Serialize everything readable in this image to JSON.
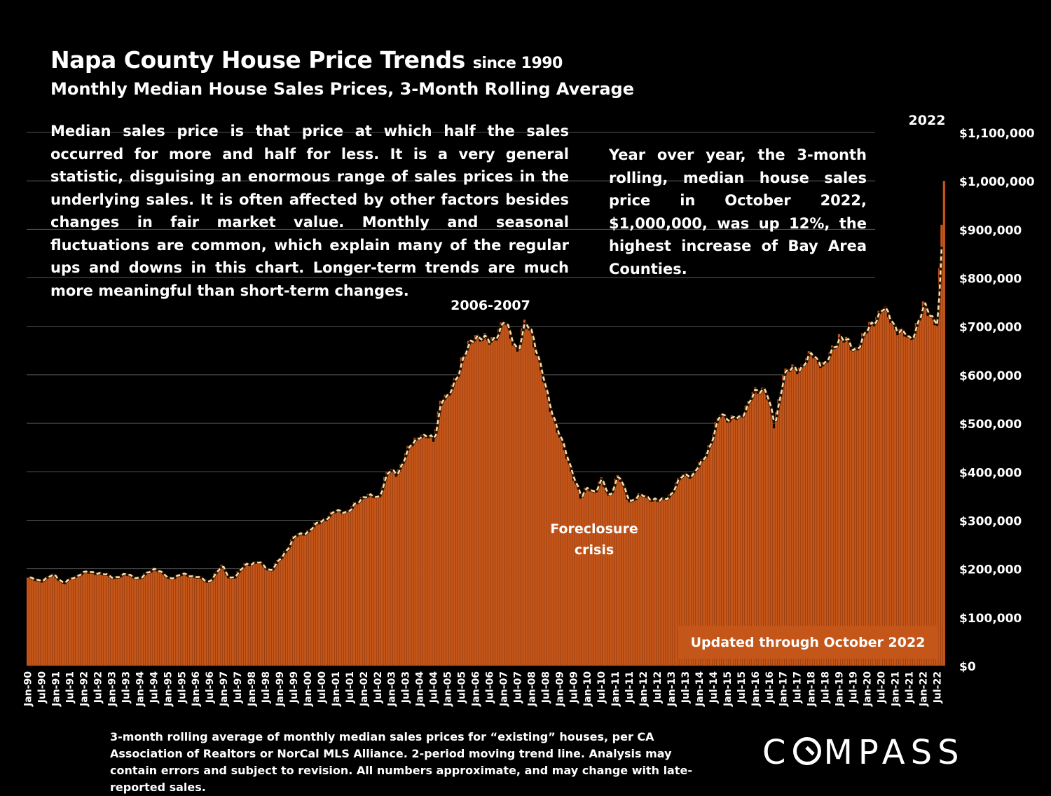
{
  "header": {
    "title": "Napa County House Price Trends",
    "title_suffix": "since 1990",
    "subtitle": "Monthly Median House Sales Prices, 3-Month Rolling Average"
  },
  "description": "Median sales price is that price at which half the sales occurred for more and half for less. It is a very general statistic, disguising an enormous range of sales prices in the underlying sales. It is often affected by other factors besides changes in fair market value. Monthly and seasonal fluctuations are common, which explain many of the regular ups and downs in this chart. Longer-term trends are much more meaningful than short-term changes.",
  "callout": "Year over year, the 3-month rolling, median house sales price in October 2022, $1,000,000, was up 12%, the highest increase of Bay Area Counties.",
  "footnote": "3-month rolling average of monthly median sales prices for “existing” houses, per CA Association of Realtors or NorCal MLS Alliance. 2-period moving trend line. Analysis may contain errors and subject to revision. All numbers approximate, and may change with late-reported sales.",
  "logo": {
    "pre": "C",
    "post": "MPASS"
  },
  "colors": {
    "bar": "#c4561a",
    "bar_edge": "#7a2c08",
    "trend": "#f5dfb0",
    "grid": "#555555",
    "updated_bg": "#c4561a"
  },
  "chart_data": {
    "type": "bar",
    "title": "Napa County House Price Trends since 1990",
    "start": "Jan-90",
    "end": "Oct-22",
    "ylim": [
      0,
      1100000
    ],
    "y_ticks": [
      "$0",
      "$100,000",
      "$200,000",
      "$300,000",
      "$400,000",
      "$500,000",
      "$600,000",
      "$700,000",
      "$800,000",
      "$900,000",
      "$1,000,000",
      "$1,100,000"
    ],
    "x_tick_labels": [
      "Jan-90",
      "Jul-90",
      "Jan-91",
      "Jul-91",
      "Jan-92",
      "Jul-92",
      "Jan-93",
      "Jul-93",
      "Jan-94",
      "Jul-94",
      "Jan-95",
      "Jul-95",
      "Jan-96",
      "Jul-96",
      "Jan-97",
      "Jul-97",
      "Jan-98",
      "Jul-98",
      "Jan-99",
      "Jul-99",
      "Jan-00",
      "Jul-00",
      "Jan-01",
      "Jul-01",
      "Jan-02",
      "Jul-02",
      "Jan-03",
      "Jul-03",
      "Jan-04",
      "Jul-04",
      "Jan-05",
      "Jul-05",
      "Jan-06",
      "Jul-06",
      "Jan-07",
      "Jul-07",
      "Jan-08",
      "Jul-08",
      "Jan-09",
      "Jul-09",
      "Jan-10",
      "Jul-10",
      "Jan-11",
      "Jul-11",
      "Jan-12",
      "Jul-12",
      "Jan-13",
      "Jul-13",
      "Jan-14",
      "Jul-14",
      "Jan-15",
      "Jul-15",
      "Jan-16",
      "Jul-16",
      "Jan-17",
      "Jul-17",
      "Jan-18",
      "Jul-18",
      "Jan-19",
      "Jul-19",
      "Jan-20",
      "Jul-20",
      "Jan-21",
      "Jul-21",
      "Jan-22",
      "Jul-22"
    ],
    "series_name": "3-month rolling median house sales price",
    "trendline": "2-period moving average",
    "anchors": [
      [
        "Jan-90",
        180000
      ],
      [
        "Jul-90",
        176000
      ],
      [
        "Dec-90",
        188000
      ],
      [
        "Apr-91",
        170000
      ],
      [
        "Dec-91",
        192000
      ],
      [
        "Jul-92",
        192000
      ],
      [
        "Jan-93",
        182000
      ],
      [
        "Jul-93",
        188000
      ],
      [
        "Jan-94",
        180000
      ],
      [
        "Jul-94",
        202000
      ],
      [
        "Jan-95",
        180000
      ],
      [
        "Jul-95",
        188000
      ],
      [
        "Jan-96",
        184000
      ],
      [
        "Jun-96",
        172000
      ],
      [
        "Dec-96",
        205000
      ],
      [
        "Mar-97",
        182000
      ],
      [
        "Jun-97",
        184000
      ],
      [
        "Oct-97",
        210000
      ],
      [
        "Apr-98",
        212000
      ],
      [
        "Sep-98",
        196000
      ],
      [
        "Jan-99",
        220000
      ],
      [
        "Jul-99",
        265000
      ],
      [
        "Jan-00",
        278000
      ],
      [
        "Jul-00",
        300000
      ],
      [
        "Jan-01",
        318000
      ],
      [
        "Jul-01",
        320000
      ],
      [
        "Jan-02",
        352000
      ],
      [
        "Jul-02",
        345000
      ],
      [
        "Nov-02",
        400000
      ],
      [
        "Mar-03",
        395000
      ],
      [
        "Jul-03",
        438000
      ],
      [
        "Jan-04",
        478000
      ],
      [
        "Jul-04",
        465000
      ],
      [
        "Oct-04",
        552000
      ],
      [
        "Jan-05",
        550000
      ],
      [
        "Jul-05",
        630000
      ],
      [
        "Jan-06",
        685000
      ],
      [
        "Jul-06",
        665000
      ],
      [
        "Jan-07",
        708000
      ],
      [
        "Jul-07",
        652000
      ],
      [
        "Oct-07",
        702000
      ],
      [
        "Jan-08",
        690000
      ],
      [
        "Jul-08",
        565000
      ],
      [
        "Jan-09",
        470000
      ],
      [
        "Jul-09",
        390000
      ],
      [
        "Oct-09",
        345000
      ],
      [
        "Jan-10",
        370000
      ],
      [
        "Apr-10",
        358000
      ],
      [
        "Jul-10",
        382000
      ],
      [
        "Oct-10",
        350000
      ],
      [
        "Feb-11",
        390000
      ],
      [
        "Jul-11",
        340000
      ],
      [
        "Jan-12",
        352000
      ],
      [
        "Jul-12",
        338000
      ],
      [
        "Jan-13",
        355000
      ],
      [
        "Jun-13",
        398000
      ],
      [
        "Oct-13",
        390000
      ],
      [
        "Jun-14",
        460000
      ],
      [
        "Oct-14",
        525000
      ],
      [
        "Feb-15",
        505000
      ],
      [
        "Jun-15",
        512000
      ],
      [
        "Jan-16",
        565000
      ],
      [
        "May-16",
        575000
      ],
      [
        "Sep-16",
        492000
      ],
      [
        "Jan-17",
        605000
      ],
      [
        "Jul-17",
        612000
      ],
      [
        "Jan-18",
        640000
      ],
      [
        "Jul-18",
        620000
      ],
      [
        "Jan-19",
        682000
      ],
      [
        "Jul-19",
        650000
      ],
      [
        "Jan-20",
        690000
      ],
      [
        "Jul-20",
        738000
      ],
      [
        "Jan-21",
        700000
      ],
      [
        "Jul-21",
        670000
      ],
      [
        "Jan-22",
        738000
      ],
      [
        "Jul-22",
        710000
      ],
      [
        "Oct-22",
        1000000
      ]
    ],
    "annotations": [
      {
        "label": "2006-2007",
        "at": "Jan-07"
      },
      {
        "label": "Foreclosure crisis",
        "at": "Jul-10"
      },
      {
        "label": "2022",
        "at": "Jun-22"
      }
    ],
    "updated_note": "Updated through October 2022"
  }
}
